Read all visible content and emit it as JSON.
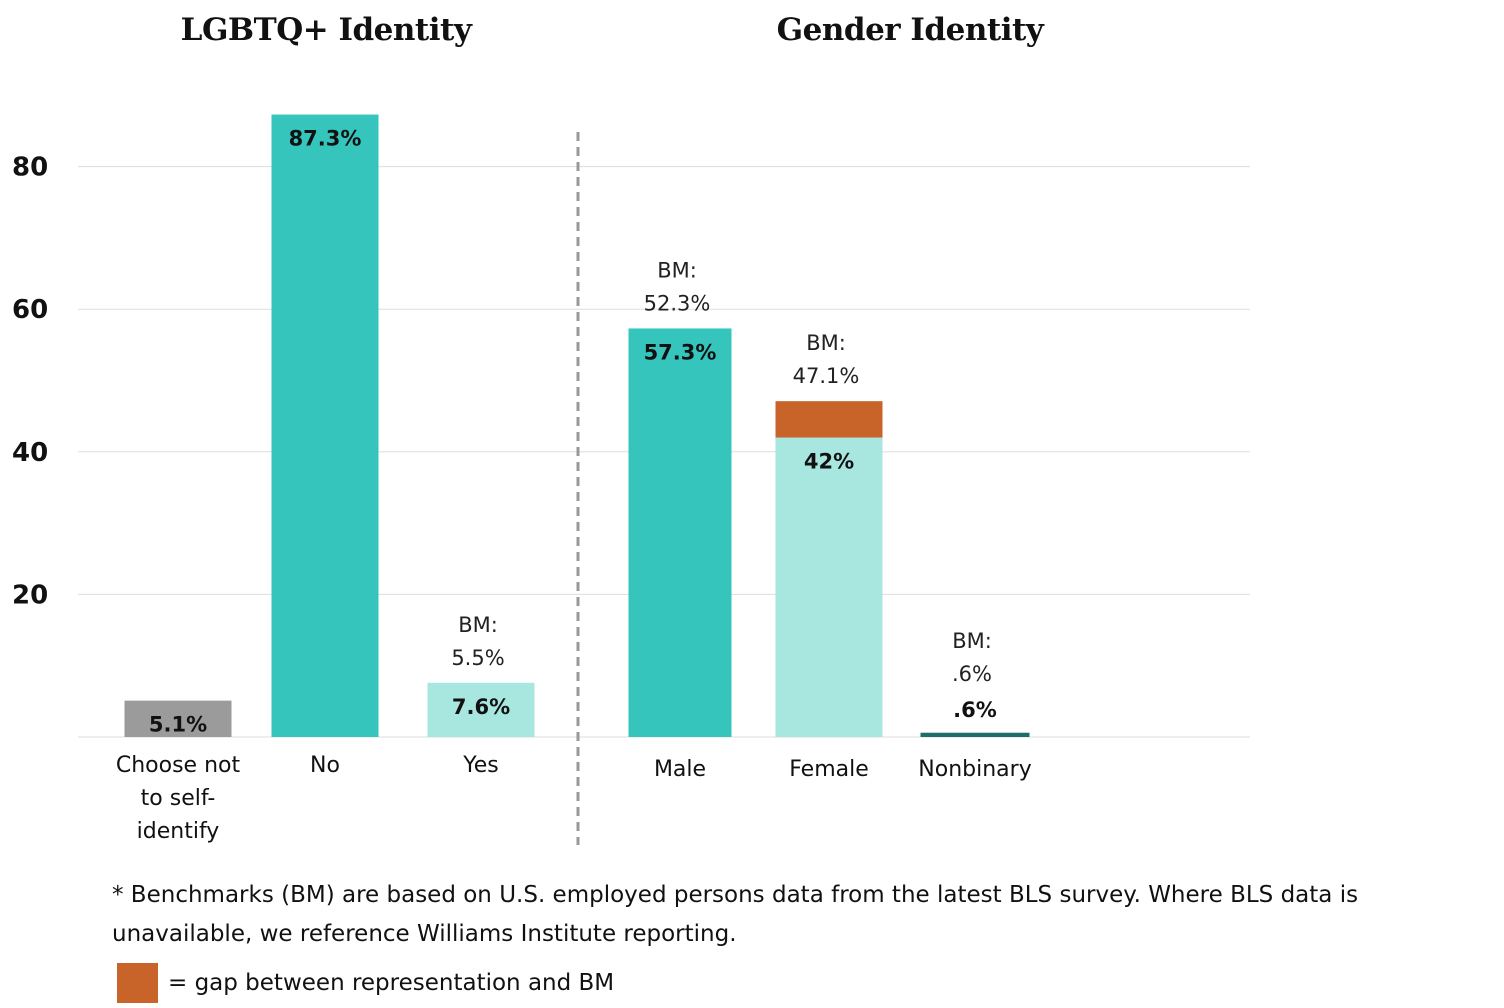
{
  "colors": {
    "primary_teal": "#35C5BC",
    "light_teal": "#A8E6E0",
    "dark_teal": "#1E6E67",
    "gray": "#9B9B9B",
    "gap_orange": "#C8632A",
    "gridline": "#DDDDDD",
    "divider": "#999999"
  },
  "chart_data": {
    "type": "bar",
    "y_ticks": [
      20,
      40,
      60,
      80
    ],
    "ylim": [
      0,
      88
    ],
    "grid": true,
    "panels": [
      {
        "title": "LGBTQ+ Identity",
        "categories": [
          "Choose not to self-identify",
          "No",
          "Yes"
        ],
        "category_label_lines": [
          [
            "Choose not",
            "to self-",
            "identify"
          ],
          [
            "No"
          ],
          [
            "Yes"
          ]
        ],
        "values": [
          5.1,
          87.3,
          7.6
        ],
        "value_labels": [
          "5.1%",
          "87.3%",
          "7.6%"
        ],
        "benchmarks": [
          null,
          null,
          5.5
        ],
        "benchmark_labels": [
          null,
          null,
          [
            "BM:",
            "5.5%"
          ]
        ],
        "bar_colors": [
          "gray",
          "primary_teal",
          "light_teal"
        ]
      },
      {
        "title": "Gender Identity",
        "categories": [
          "Male",
          "Female",
          "Nonbinary"
        ],
        "category_label_lines": [
          [
            "Male"
          ],
          [
            "Female"
          ],
          [
            "Nonbinary"
          ]
        ],
        "values": [
          57.3,
          42,
          0.6
        ],
        "value_labels": [
          "57.3%",
          "42%",
          ".6%"
        ],
        "benchmarks": [
          52.3,
          47.1,
          0.6
        ],
        "benchmark_labels": [
          [
            "BM:",
            "52.3%"
          ],
          [
            "BM:",
            "47.1%"
          ],
          [
            "BM:",
            ".6%"
          ]
        ],
        "bar_colors": [
          "primary_teal",
          "light_teal",
          "dark_teal"
        ]
      }
    ]
  },
  "footnote": {
    "text": "* Benchmarks (BM) are based on U.S. employed persons data from the latest BLS survey. Where BLS data is unavailable, we reference Williams Institute reporting."
  },
  "legend": {
    "swatch_color": "gap_orange",
    "text": "= gap between representation and BM"
  }
}
